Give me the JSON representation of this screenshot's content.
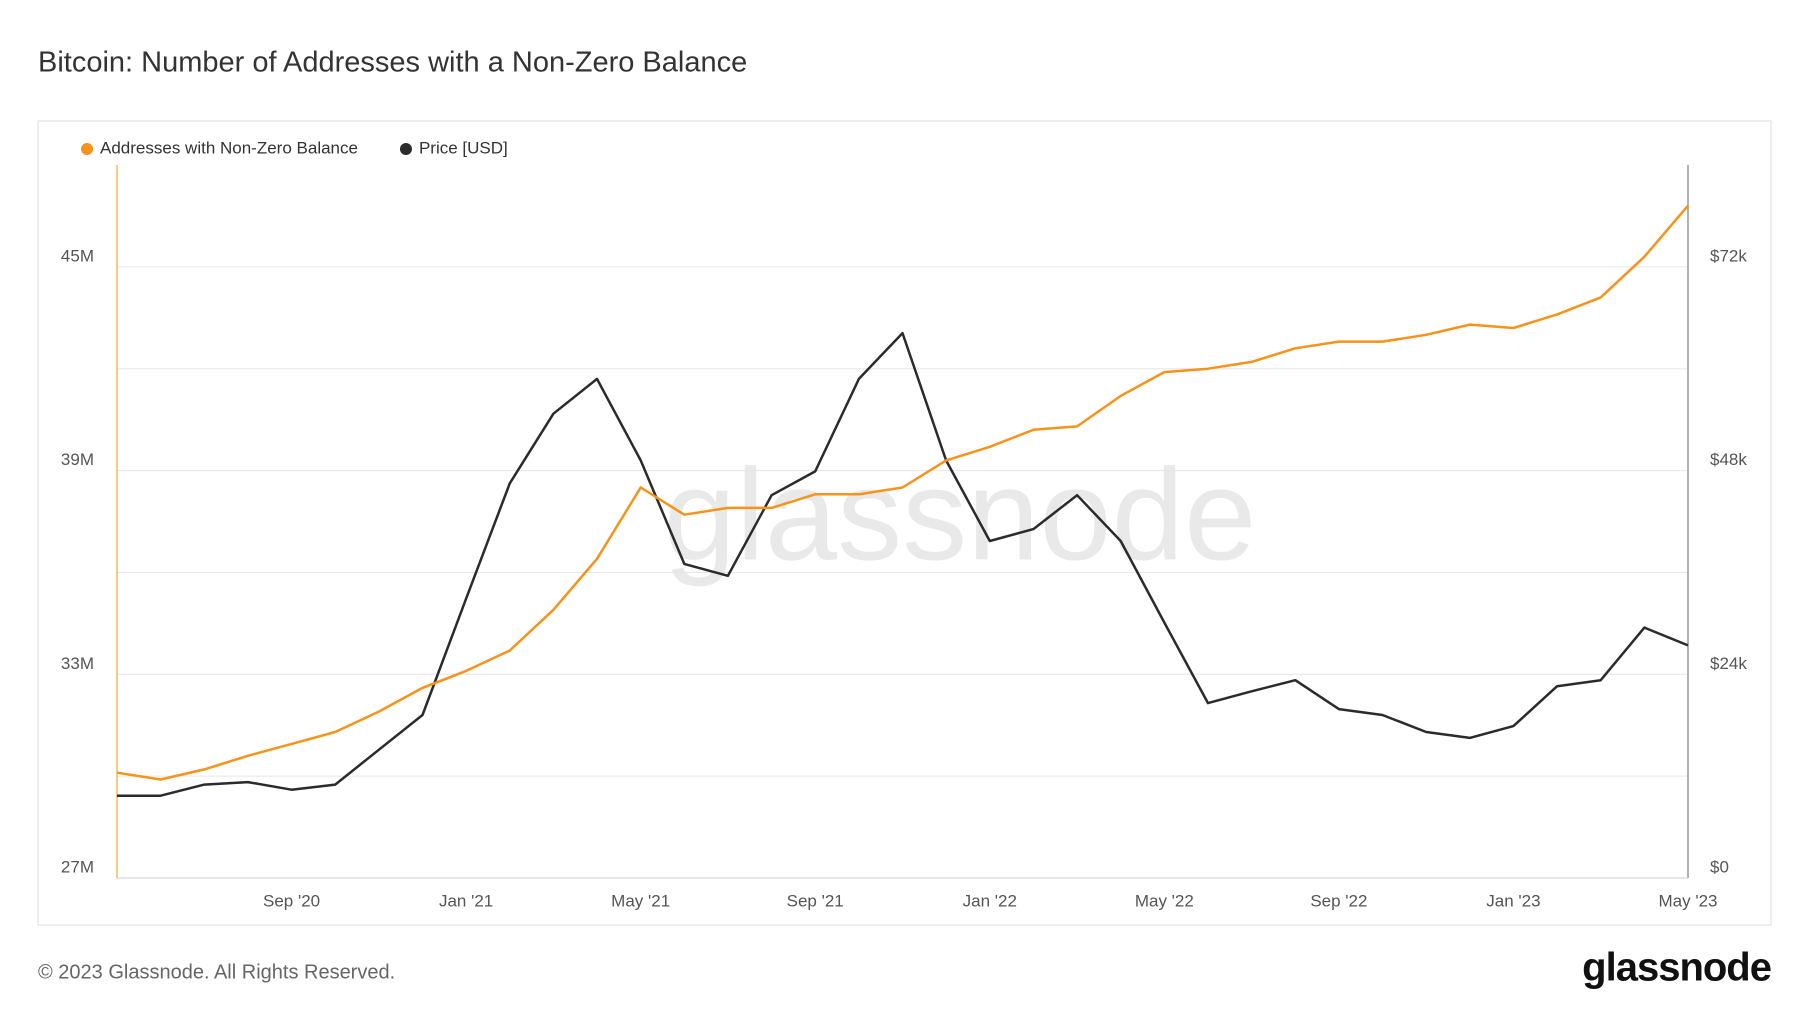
{
  "chart_data": {
    "type": "line",
    "title": "Bitcoin: Number of Addresses with a Non-Zero Balance",
    "x": [
      "2020-05",
      "2020-06",
      "2020-07",
      "2020-08",
      "2020-09",
      "2020-10",
      "2020-11",
      "2020-12",
      "2021-01",
      "2021-02",
      "2021-03",
      "2021-04",
      "2021-05",
      "2021-06",
      "2021-07",
      "2021-08",
      "2021-09",
      "2021-10",
      "2021-11",
      "2021-12",
      "2022-01",
      "2022-02",
      "2022-03",
      "2022-04",
      "2022-05",
      "2022-06",
      "2022-07",
      "2022-08",
      "2022-09",
      "2022-10",
      "2022-11",
      "2022-12",
      "2023-01",
      "2023-02",
      "2023-03",
      "2023-04",
      "2023-05"
    ],
    "xlim": [
      "2020-05",
      "2023-05"
    ],
    "xticks": [
      {
        "value": "2020-09",
        "label": "Sep '20"
      },
      {
        "value": "2021-01",
        "label": "Jan '21"
      },
      {
        "value": "2021-05",
        "label": "May '21"
      },
      {
        "value": "2021-09",
        "label": "Sep '21"
      },
      {
        "value": "2022-01",
        "label": "Jan '22"
      },
      {
        "value": "2022-05",
        "label": "May '22"
      },
      {
        "value": "2022-09",
        "label": "Sep '22"
      },
      {
        "value": "2023-01",
        "label": "Jan '23"
      },
      {
        "value": "2023-05",
        "label": "May '23"
      }
    ],
    "series": [
      {
        "name": "Addresses with Non-Zero Balance",
        "color": "#f7931a",
        "axis": "y",
        "values": [
          30.1,
          29.9,
          30.2,
          30.6,
          30.95,
          31.3,
          31.9,
          32.6,
          33.1,
          33.7,
          34.9,
          36.4,
          38.5,
          37.7,
          37.9,
          37.9,
          38.3,
          38.3,
          38.5,
          39.3,
          39.7,
          40.2,
          40.3,
          41.2,
          41.9,
          42.0,
          42.2,
          42.6,
          42.8,
          42.8,
          43.0,
          43.3,
          43.2,
          43.6,
          44.1,
          45.3,
          46.8
        ]
      },
      {
        "name": "Price [USD]",
        "color": "#2b2b2b",
        "axis": "y2",
        "values": [
          9700,
          9700,
          11000,
          11300,
          10400,
          11000,
          15100,
          19200,
          32900,
          46500,
          54700,
          58800,
          49200,
          37000,
          35600,
          45100,
          47900,
          58800,
          64200,
          49200,
          39700,
          41100,
          45100,
          39700,
          30100,
          20600,
          22000,
          23300,
          19900,
          19200,
          17200,
          16500,
          17900,
          22600,
          23300,
          29500,
          27400
        ]
      }
    ],
    "ylim": [
      27,
      48
    ],
    "yticks": [
      {
        "value": 27,
        "label": "27M"
      },
      {
        "value": 33,
        "label": "33M"
      },
      {
        "value": 39,
        "label": "39M"
      },
      {
        "value": 45,
        "label": "45M"
      }
    ],
    "ygrid": [
      27,
      30,
      33,
      36,
      39,
      42,
      45
    ],
    "y2lim": [
      0,
      84000
    ],
    "y2ticks": [
      {
        "value": 0,
        "label": "$0"
      },
      {
        "value": 24000,
        "label": "$24k"
      },
      {
        "value": 48000,
        "label": "$48k"
      },
      {
        "value": 72000,
        "label": "$72k"
      }
    ],
    "grid": true,
    "legend": "top-left",
    "watermark": "glassnode"
  },
  "footer": {
    "copyright": "© 2023 Glassnode. All Rights Reserved.",
    "logo": "glassnode"
  }
}
